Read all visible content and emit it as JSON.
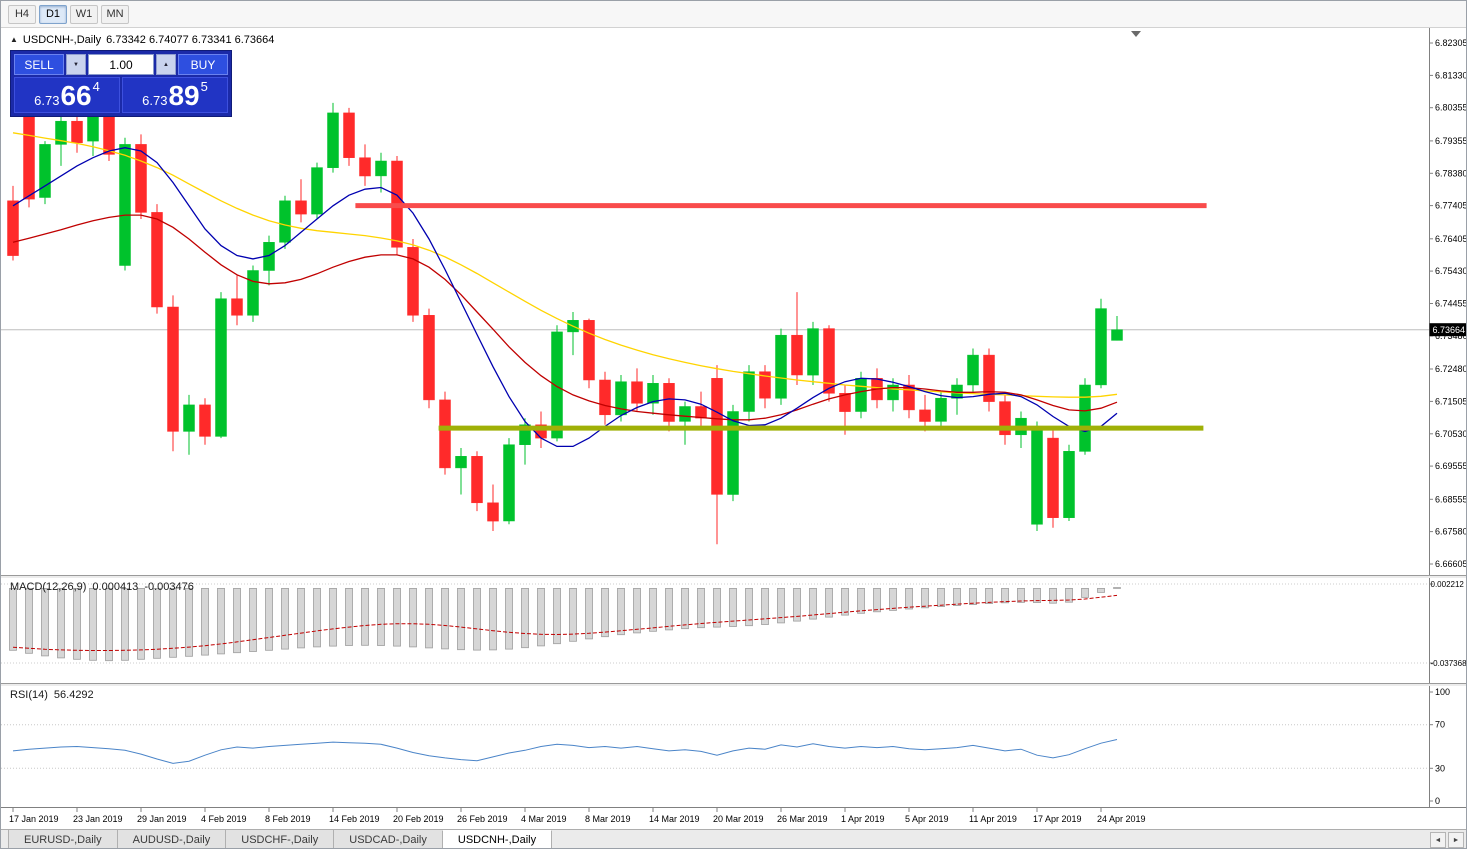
{
  "toolbar": {
    "timeframes": [
      {
        "label": "H4",
        "active": false
      },
      {
        "label": "D1",
        "active": true
      },
      {
        "label": "W1",
        "active": false
      },
      {
        "label": "MN",
        "active": false
      }
    ]
  },
  "icons": {
    "collapse": "▲",
    "chevron_down": "▼",
    "chevron_up": "▲",
    "scroll_left": "◄",
    "scroll_right": "►"
  },
  "chart_header": {
    "title": "USDCNH-,Daily",
    "ohlc": "6.73342 6.74077 6.73341 6.73664"
  },
  "trade_panel": {
    "sell_label": "SELL",
    "buy_label": "BUY",
    "volume": "1.00",
    "sell_price": {
      "base": "6.73",
      "big": "66",
      "sup": "4"
    },
    "buy_price": {
      "base": "6.73",
      "big": "89",
      "sup": "5"
    },
    "panel_color": "#1B2AA8",
    "button_color": "#2E4FE0"
  },
  "indicators": {
    "macd": {
      "name": "MACD(12,26,9)",
      "value_main": "0.000413",
      "value_signal": "-0.003476"
    },
    "rsi": {
      "name": "RSI(14)",
      "value": "56.4292"
    }
  },
  "tabs": {
    "items": [
      "EURUSD-,Daily",
      "AUDUSD-,Daily",
      "USDCHF-,Daily",
      "USDCAD-,Daily",
      "USDCNH-,Daily"
    ],
    "active_index": 4
  },
  "chart_data": {
    "type": "candlestick",
    "symbol": "USDCNH-",
    "timeframe": "Daily",
    "price_axis": {
      "max": 6.82305,
      "min": 6.66605,
      "current": "6.73664",
      "ticks": [
        "6.82305",
        "6.81330",
        "6.80355",
        "6.79355",
        "6.78380",
        "6.77405",
        "6.76405",
        "6.75430",
        "6.74455",
        "6.73480",
        "6.72480",
        "6.71505",
        "6.70530",
        "6.69555",
        "6.68555",
        "6.67580",
        "6.66605"
      ]
    },
    "time_axis": {
      "labels": [
        "17 Jan 2019",
        "23 Jan 2019",
        "29 Jan 2019",
        "4 Feb 2019",
        "8 Feb 2019",
        "14 Feb 2019",
        "20 Feb 2019",
        "26 Feb 2019",
        "4 Mar 2019",
        "8 Mar 2019",
        "14 Mar 2019",
        "20 Mar 2019",
        "26 Mar 2019",
        "1 Apr 2019",
        "5 Apr 2019",
        "11 Apr 2019",
        "17 Apr 2019",
        "24 Apr 2019"
      ],
      "indices": [
        0,
        4,
        8,
        12,
        16,
        20,
        24,
        28,
        32,
        36,
        40,
        44,
        48,
        52,
        56,
        60,
        64,
        68
      ]
    },
    "candles": [
      [
        6.7755,
        6.78,
        6.7575,
        6.759
      ],
      [
        6.8015,
        6.8045,
        6.7735,
        6.776
      ],
      [
        6.7765,
        6.7935,
        6.7745,
        6.7925
      ],
      [
        6.7925,
        6.8015,
        6.786,
        6.7995
      ],
      [
        6.7995,
        6.804,
        6.79,
        6.793
      ],
      [
        6.7935,
        6.8065,
        6.789,
        6.8045
      ],
      [
        6.8045,
        6.8075,
        6.7875,
        6.7895
      ],
      [
        6.756,
        6.7945,
        6.7545,
        6.7925
      ],
      [
        6.7925,
        6.7955,
        6.77,
        6.772
      ],
      [
        6.772,
        6.7745,
        6.7415,
        6.7435
      ],
      [
        6.7435,
        6.747,
        6.7,
        6.706
      ],
      [
        6.706,
        6.717,
        6.699,
        6.714
      ],
      [
        6.714,
        6.716,
        6.702,
        6.7045
      ],
      [
        6.7045,
        6.748,
        6.704,
        6.746
      ],
      [
        6.746,
        6.753,
        6.738,
        6.741
      ],
      [
        6.741,
        6.756,
        6.739,
        6.7545
      ],
      [
        6.7545,
        6.765,
        6.75,
        6.763
      ],
      [
        6.763,
        6.777,
        6.761,
        6.7755
      ],
      [
        6.7755,
        6.782,
        6.769,
        6.7715
      ],
      [
        6.7715,
        6.787,
        6.77,
        6.7855
      ],
      [
        6.7855,
        6.805,
        6.784,
        6.802
      ],
      [
        6.802,
        6.8035,
        6.786,
        6.7885
      ],
      [
        6.7885,
        6.7925,
        6.78,
        6.783
      ],
      [
        6.783,
        6.79,
        6.778,
        6.7875
      ],
      [
        6.7875,
        6.789,
        6.759,
        6.7615
      ],
      [
        6.7615,
        6.764,
        6.739,
        6.741
      ],
      [
        6.741,
        6.743,
        6.713,
        6.7155
      ],
      [
        6.7155,
        6.718,
        6.693,
        6.695
      ],
      [
        6.695,
        6.701,
        6.687,
        6.6985
      ],
      [
        6.6985,
        6.7,
        6.682,
        6.6845
      ],
      [
        6.6845,
        6.69,
        6.676,
        6.679
      ],
      [
        6.679,
        6.704,
        6.678,
        6.702
      ],
      [
        6.702,
        6.71,
        6.696,
        6.708
      ],
      [
        6.708,
        6.712,
        6.701,
        6.704
      ],
      [
        6.704,
        6.738,
        6.703,
        6.736
      ],
      [
        6.736,
        6.742,
        6.729,
        6.7395
      ],
      [
        6.7395,
        6.74,
        6.719,
        6.7215
      ],
      [
        6.7215,
        6.724,
        6.708,
        6.711
      ],
      [
        6.711,
        6.723,
        6.709,
        6.721
      ],
      [
        6.721,
        6.725,
        6.712,
        6.7145
      ],
      [
        6.7145,
        6.723,
        6.711,
        6.7205
      ],
      [
        6.7205,
        6.722,
        6.706,
        6.709
      ],
      [
        6.709,
        6.715,
        6.702,
        6.7135
      ],
      [
        6.7135,
        6.718,
        6.707,
        6.71
      ],
      [
        6.722,
        6.726,
        6.672,
        6.687
      ],
      [
        6.687,
        6.714,
        6.685,
        6.712
      ],
      [
        6.712,
        6.726,
        6.709,
        6.724
      ],
      [
        6.724,
        6.726,
        6.713,
        6.716
      ],
      [
        6.716,
        6.737,
        6.714,
        6.735
      ],
      [
        6.735,
        6.748,
        6.72,
        6.723
      ],
      [
        6.723,
        6.739,
        6.72,
        6.737
      ],
      [
        6.737,
        6.738,
        6.715,
        6.7175
      ],
      [
        6.7175,
        6.72,
        6.705,
        6.712
      ],
      [
        6.712,
        6.724,
        6.71,
        6.722
      ],
      [
        6.722,
        6.725,
        6.713,
        6.7155
      ],
      [
        6.7155,
        6.722,
        6.712,
        6.72
      ],
      [
        6.72,
        6.723,
        6.71,
        6.7125
      ],
      [
        6.7125,
        6.717,
        6.706,
        6.709
      ],
      [
        6.709,
        6.718,
        6.707,
        6.716
      ],
      [
        6.716,
        6.722,
        6.711,
        6.72
      ],
      [
        6.72,
        6.731,
        6.718,
        6.729
      ],
      [
        6.729,
        6.731,
        6.712,
        6.715
      ],
      [
        6.715,
        6.717,
        6.702,
        6.705
      ],
      [
        6.705,
        6.712,
        6.701,
        6.71
      ],
      [
        6.678,
        6.709,
        6.676,
        6.707
      ],
      [
        6.704,
        6.707,
        6.677,
        6.68
      ],
      [
        6.68,
        6.702,
        6.679,
        6.7
      ],
      [
        6.7,
        6.722,
        6.699,
        6.72
      ],
      [
        6.72,
        6.746,
        6.719,
        6.743
      ],
      [
        6.73342,
        6.74077,
        6.73341,
        6.73664
      ]
    ],
    "ma": {
      "fast": [
        6.774,
        6.777,
        6.78,
        6.783,
        6.786,
        6.7885,
        6.7905,
        6.7915,
        6.7905,
        6.787,
        6.781,
        6.774,
        6.767,
        6.762,
        6.759,
        6.758,
        6.759,
        6.762,
        6.766,
        6.77,
        6.774,
        6.7772,
        6.779,
        6.7795,
        6.7772,
        6.7718,
        6.764,
        6.7548,
        6.745,
        6.7352,
        6.7255,
        6.7165,
        6.709,
        6.704,
        6.7015,
        6.7015,
        6.704,
        6.7075,
        6.7108,
        6.7132,
        6.715,
        6.7158,
        6.7155,
        6.7142,
        6.7118,
        6.7092,
        6.7078,
        6.708,
        6.71,
        6.713,
        6.7162,
        6.719,
        6.721,
        6.722,
        6.7218,
        6.7208,
        6.7195,
        6.718,
        6.7168,
        6.7162,
        6.7165,
        6.7172,
        6.7175,
        6.7165,
        6.714,
        6.7105,
        6.7075,
        6.706,
        6.7075,
        6.7115
      ],
      "medium": [
        6.763,
        6.7642,
        6.7655,
        6.7668,
        6.7682,
        6.7695,
        6.7705,
        6.7712,
        6.7712,
        6.77,
        6.7675,
        6.764,
        6.76,
        6.7562,
        6.7532,
        6.7512,
        6.7505,
        6.7508,
        6.7518,
        6.7535,
        6.7555,
        6.7572,
        6.7585,
        6.7592,
        6.7592,
        6.758,
        6.7555,
        6.7518,
        6.7472,
        6.742,
        6.7368,
        6.7315,
        6.7268,
        6.7228,
        6.7195,
        6.717,
        6.7152,
        6.7138,
        6.7128,
        6.712,
        6.7115,
        6.711,
        6.7106,
        6.7102,
        6.7098,
        6.7095,
        6.7095,
        6.71,
        6.711,
        6.7125,
        6.7142,
        6.7158,
        6.717,
        6.718,
        6.7188,
        6.7192,
        6.7192,
        6.7188,
        6.7182,
        6.7178,
        6.7178,
        6.718,
        6.7178,
        6.717,
        6.7155,
        6.7138,
        6.7125,
        6.7122,
        6.713,
        6.7148
      ],
      "slow": [
        6.796,
        6.7952,
        6.7944,
        6.7936,
        6.7928,
        6.7918,
        6.7906,
        6.7892,
        6.7875,
        6.7855,
        6.7832,
        6.7806,
        6.778,
        6.7755,
        6.7732,
        6.7712,
        6.7695,
        6.7682,
        6.7672,
        6.7665,
        6.766,
        6.7655,
        6.765,
        6.7643,
        6.7634,
        6.7622,
        6.7606,
        6.7586,
        6.7562,
        6.7536,
        6.7508,
        6.748,
        6.7452,
        6.7425,
        6.74,
        6.7377,
        6.7356,
        6.7337,
        6.732,
        6.7305,
        6.7291,
        6.7279,
        6.7268,
        6.7258,
        6.7249,
        6.7241,
        6.7234,
        6.7227,
        6.7221,
        6.7215,
        6.721,
        6.7205,
        6.72,
        6.7196,
        6.7192,
        6.7188,
        6.7185,
        6.7182,
        6.7179,
        6.7176,
        6.7174,
        6.7172,
        6.717,
        6.7168,
        6.7166,
        6.7164,
        6.7163,
        6.7163,
        6.7166,
        6.7172
      ]
    },
    "overlays": {
      "lines": [
        {
          "name": "resistance",
          "price": 6.77405,
          "start_index": 21.4,
          "end_index": 74.6,
          "color": "#F94B4B",
          "width": 5
        },
        {
          "name": "support",
          "price": 6.707,
          "start_index": 26.6,
          "end_index": 74.4,
          "color": "#9FB007",
          "width": 5
        }
      ]
    },
    "macd": {
      "scale_max": 0.002212,
      "scale_min": -0.037368,
      "scale_labels": [
        "0.002212",
        "-0.037368"
      ],
      "histogram": [
        -0.031,
        -0.0325,
        -0.0338,
        -0.0348,
        -0.0355,
        -0.036,
        -0.0362,
        -0.036,
        -0.0355,
        -0.035,
        -0.0345,
        -0.034,
        -0.0334,
        -0.0328,
        -0.0322,
        -0.0316,
        -0.031,
        -0.0304,
        -0.0298,
        -0.0293,
        -0.0289,
        -0.0286,
        -0.0285,
        -0.0286,
        -0.0289,
        -0.0293,
        -0.0298,
        -0.0303,
        -0.0307,
        -0.0309,
        -0.0308,
        -0.0304,
        -0.0297,
        -0.0288,
        -0.0277,
        -0.0265,
        -0.0253,
        -0.0242,
        -0.0232,
        -0.0223,
        -0.0215,
        -0.0208,
        -0.0202,
        -0.0197,
        -0.0194,
        -0.0191,
        -0.0187,
        -0.0181,
        -0.0173,
        -0.0164,
        -0.0154,
        -0.0144,
        -0.0134,
        -0.0125,
        -0.0117,
        -0.011,
        -0.0103,
        -0.0097,
        -0.0091,
        -0.0086,
        -0.0081,
        -0.0076,
        -0.0072,
        -0.007,
        -0.0071,
        -0.0074,
        -0.0069,
        -0.0045,
        -0.002,
        0.000413
      ],
      "signal": [
        -0.0295,
        -0.03,
        -0.0305,
        -0.0308,
        -0.031,
        -0.0311,
        -0.0311,
        -0.031,
        -0.0308,
        -0.0305,
        -0.03,
        -0.0294,
        -0.0287,
        -0.0278,
        -0.0268,
        -0.0257,
        -0.0246,
        -0.0235,
        -0.0224,
        -0.0213,
        -0.0203,
        -0.0194,
        -0.0186,
        -0.018,
        -0.0177,
        -0.0177,
        -0.018,
        -0.0186,
        -0.0194,
        -0.0203,
        -0.0212,
        -0.022,
        -0.0226,
        -0.023,
        -0.0231,
        -0.0229,
        -0.0225,
        -0.0219,
        -0.0212,
        -0.0205,
        -0.0198,
        -0.019,
        -0.0183,
        -0.0176,
        -0.017,
        -0.0164,
        -0.0158,
        -0.0152,
        -0.0146,
        -0.014,
        -0.0133,
        -0.0126,
        -0.0119,
        -0.0112,
        -0.0106,
        -0.01,
        -0.0094,
        -0.0089,
        -0.0084,
        -0.0079,
        -0.0074,
        -0.007,
        -0.0066,
        -0.0063,
        -0.0061,
        -0.006,
        -0.0058,
        -0.0053,
        -0.0044,
        -0.0035
      ]
    },
    "rsi": {
      "levels": [
        "100",
        "70",
        "30",
        "0"
      ],
      "dotted_levels": [
        70,
        30
      ],
      "values": [
        46,
        47.5,
        48.5,
        49.5,
        50,
        49,
        48,
        46.5,
        43,
        38.5,
        34.5,
        36.5,
        42,
        47,
        49.5,
        48.5,
        50,
        51,
        52,
        53,
        54,
        53.5,
        53,
        52,
        48.5,
        44.5,
        41.5,
        39.5,
        38,
        37,
        40.5,
        44,
        46.5,
        50,
        52,
        51,
        49,
        50,
        48.5,
        50,
        48,
        46,
        47,
        45.5,
        42,
        46,
        48.5,
        47.5,
        51.5,
        49.5,
        52.5,
        50,
        48.5,
        50,
        49,
        50,
        48,
        47,
        48,
        49,
        51,
        48.5,
        46,
        47.5,
        42,
        39.5,
        42.5,
        48,
        53,
        56.4292
      ]
    },
    "colors": {
      "bull": "#00C22C",
      "bear": "#FF2A2A",
      "ma_fast": "#0000B0",
      "ma_medium": "#C00000",
      "ma_slow": "#FFD400",
      "rsi_line": "#4A84C8",
      "macd_fill": "#D6D6D6",
      "macd_stroke": "#9E9E9E",
      "macd_signal": "#C00000",
      "bid_line": "#BDBDBD",
      "axis": "#808080",
      "badge_bg": "#000000",
      "badge_text": "#FFFFFF"
    }
  }
}
